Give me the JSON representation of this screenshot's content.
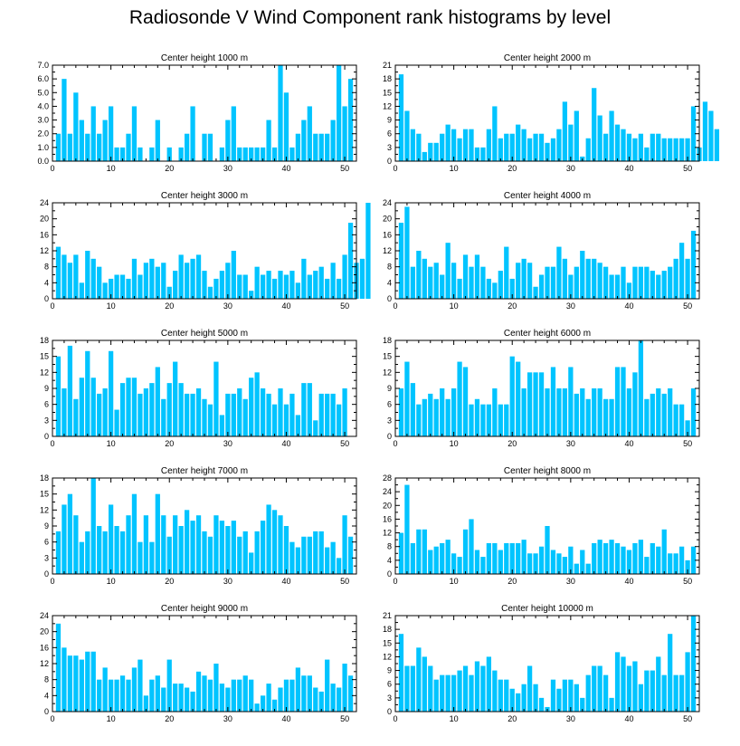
{
  "title": "Radiosonde V Wind Component rank histograms by level",
  "bar_color": "#00c4ff",
  "chart_data": [
    {
      "type": "bar",
      "title": "Center height 1000 m",
      "xlim": [
        0,
        52
      ],
      "ylim": [
        0,
        7
      ],
      "yticks": [
        "0.0",
        "1.0",
        "2.0",
        "3.0",
        "4.0",
        "5.0",
        "6.0",
        "7.0"
      ],
      "ytick_values": [
        0,
        1,
        2,
        3,
        4,
        5,
        6,
        7
      ],
      "xticks": [
        0,
        10,
        20,
        30,
        40,
        50
      ],
      "values": [
        2,
        6,
        2,
        5,
        3,
        2,
        4,
        2,
        3,
        4,
        1,
        1,
        2,
        4,
        1,
        0,
        1,
        3,
        0,
        1,
        0,
        1,
        2,
        4,
        0,
        2,
        2,
        0,
        1,
        3,
        4,
        1,
        1,
        1,
        1,
        1,
        3,
        1,
        7,
        5,
        1,
        2,
        3,
        4,
        2,
        2,
        2,
        3,
        7,
        4,
        6
      ]
    },
    {
      "type": "bar",
      "title": "Center height 2000 m",
      "xlim": [
        0,
        52
      ],
      "ylim": [
        0,
        21
      ],
      "yticks": [
        "0",
        "3",
        "6",
        "9",
        "12",
        "15",
        "18",
        "21"
      ],
      "ytick_values": [
        0,
        3,
        6,
        9,
        12,
        15,
        18,
        21
      ],
      "xticks": [
        0,
        10,
        20,
        30,
        40,
        50
      ],
      "values": [
        19,
        11,
        7,
        6,
        2,
        4,
        4,
        6,
        8,
        7,
        5,
        7,
        7,
        3,
        3,
        7,
        12,
        5,
        6,
        6,
        8,
        7,
        5,
        6,
        6,
        4,
        5,
        7,
        13,
        8,
        11,
        1,
        5,
        16,
        10,
        6,
        11,
        8,
        7,
        6,
        5,
        6,
        3,
        6,
        6,
        5,
        5,
        5,
        5,
        5,
        12,
        3,
        13,
        11,
        7
      ]
    },
    {
      "type": "bar",
      "title": "Center height 3000 m",
      "xlim": [
        0,
        52
      ],
      "ylim": [
        0,
        24
      ],
      "yticks": [
        "0",
        "4",
        "8",
        "12",
        "16",
        "20",
        "24"
      ],
      "ytick_values": [
        0,
        4,
        8,
        12,
        16,
        20,
        24
      ],
      "xticks": [
        0,
        10,
        20,
        30,
        40,
        50
      ],
      "values": [
        13,
        11,
        9,
        11,
        4,
        12,
        10,
        8,
        4,
        5,
        6,
        6,
        5,
        10,
        6,
        9,
        10,
        8,
        9,
        3,
        7,
        11,
        9,
        10,
        11,
        7,
        3,
        5,
        7,
        9,
        12,
        6,
        6,
        2,
        8,
        6,
        7,
        5,
        7,
        6,
        7,
        4,
        10,
        6,
        7,
        8,
        5,
        9,
        5,
        11,
        19,
        9,
        10,
        24
      ]
    },
    {
      "type": "bar",
      "title": "Center height 4000 m",
      "xlim": [
        0,
        52
      ],
      "ylim": [
        0,
        24
      ],
      "yticks": [
        "0",
        "4",
        "8",
        "12",
        "16",
        "20",
        "24"
      ],
      "ytick_values": [
        0,
        4,
        8,
        12,
        16,
        20,
        24
      ],
      "xticks": [
        0,
        10,
        20,
        30,
        40,
        50
      ],
      "values": [
        19,
        23,
        8,
        12,
        10,
        8,
        9,
        6,
        14,
        9,
        5,
        11,
        8,
        11,
        8,
        5,
        4,
        7,
        13,
        5,
        9,
        10,
        9,
        3,
        6,
        8,
        8,
        13,
        10,
        6,
        8,
        12,
        10,
        10,
        9,
        8,
        6,
        6,
        8,
        4,
        8,
        8,
        8,
        7,
        6,
        7,
        8,
        10,
        14,
        10,
        17
      ]
    },
    {
      "type": "bar",
      "title": "Center height 5000 m",
      "xlim": [
        0,
        52
      ],
      "ylim": [
        0,
        18
      ],
      "yticks": [
        "0",
        "3",
        "6",
        "9",
        "12",
        "15",
        "18"
      ],
      "ytick_values": [
        0,
        3,
        6,
        9,
        12,
        15,
        18
      ],
      "xticks": [
        0,
        10,
        20,
        30,
        40,
        50
      ],
      "values": [
        15,
        9,
        17,
        7,
        11,
        16,
        11,
        8,
        9,
        16,
        5,
        10,
        11,
        11,
        8,
        9,
        10,
        13,
        7,
        10,
        14,
        10,
        8,
        8,
        9,
        7,
        6,
        14,
        4,
        8,
        8,
        9,
        7,
        11,
        12,
        9,
        8,
        6,
        9,
        6,
        8,
        4,
        10,
        10,
        3,
        8,
        8,
        8,
        6,
        9
      ]
    },
    {
      "type": "bar",
      "title": "Center height 6000 m",
      "xlim": [
        0,
        52
      ],
      "ylim": [
        0,
        18
      ],
      "yticks": [
        "0",
        "3",
        "6",
        "9",
        "12",
        "15",
        "18"
      ],
      "ytick_values": [
        0,
        3,
        6,
        9,
        12,
        15,
        18
      ],
      "xticks": [
        0,
        10,
        20,
        30,
        40,
        50
      ],
      "values": [
        9,
        14,
        10,
        6,
        7,
        8,
        7,
        9,
        7,
        9,
        14,
        13,
        6,
        7,
        6,
        6,
        9,
        6,
        6,
        15,
        14,
        9,
        12,
        12,
        12,
        9,
        13,
        9,
        9,
        13,
        8,
        9,
        7,
        9,
        9,
        7,
        7,
        13,
        13,
        9,
        12,
        18,
        7,
        8,
        9,
        8,
        9,
        6,
        6,
        3,
        9
      ]
    },
    {
      "type": "bar",
      "title": "Center height 7000 m",
      "xlim": [
        0,
        52
      ],
      "ylim": [
        0,
        18
      ],
      "yticks": [
        "0",
        "3",
        "6",
        "9",
        "12",
        "15",
        "18"
      ],
      "ytick_values": [
        0,
        3,
        6,
        9,
        12,
        15,
        18
      ],
      "xticks": [
        0,
        10,
        20,
        30,
        40,
        50
      ],
      "values": [
        8,
        13,
        15,
        11,
        6,
        8,
        18,
        9,
        8,
        13,
        9,
        8,
        11,
        15,
        6,
        11,
        6,
        15,
        11,
        7,
        11,
        9,
        12,
        10,
        11,
        8,
        7,
        11,
        10,
        9,
        10,
        7,
        8,
        4,
        8,
        10,
        13,
        12,
        11,
        9,
        6,
        5,
        7,
        7,
        8,
        8,
        5,
        6,
        3,
        11,
        7
      ]
    },
    {
      "type": "bar",
      "title": "Center height 8000 m",
      "xlim": [
        0,
        52
      ],
      "ylim": [
        0,
        28
      ],
      "yticks": [
        "0",
        "4",
        "8",
        "12",
        "16",
        "20",
        "24",
        "28"
      ],
      "ytick_values": [
        0,
        4,
        8,
        12,
        16,
        20,
        24,
        28
      ],
      "xticks": [
        0,
        10,
        20,
        30,
        40,
        50
      ],
      "values": [
        12,
        26,
        9,
        13,
        13,
        7,
        8,
        9,
        10,
        6,
        5,
        13,
        16,
        7,
        5,
        9,
        9,
        7,
        9,
        9,
        9,
        10,
        6,
        6,
        8,
        14,
        7,
        6,
        5,
        8,
        3,
        7,
        3,
        9,
        10,
        9,
        10,
        9,
        8,
        7,
        9,
        10,
        5,
        9,
        8,
        13,
        6,
        6,
        8,
        4,
        8
      ]
    },
    {
      "type": "bar",
      "title": "Center height 9000 m",
      "xlim": [
        0,
        52
      ],
      "ylim": [
        0,
        24
      ],
      "yticks": [
        "0",
        "4",
        "8",
        "12",
        "16",
        "20",
        "24"
      ],
      "ytick_values": [
        0,
        4,
        8,
        12,
        16,
        20,
        24
      ],
      "xticks": [
        0,
        10,
        20,
        30,
        40,
        50
      ],
      "values": [
        22,
        16,
        14,
        14,
        13,
        15,
        15,
        8,
        11,
        8,
        8,
        9,
        8,
        11,
        13,
        4,
        8,
        9,
        6,
        13,
        7,
        7,
        6,
        5,
        10,
        9,
        8,
        12,
        7,
        6,
        8,
        8,
        9,
        8,
        2,
        4,
        7,
        3,
        6,
        8,
        8,
        11,
        9,
        9,
        6,
        5,
        13,
        7,
        6,
        12,
        9
      ]
    },
    {
      "type": "bar",
      "title": "Center height 10000 m",
      "xlim": [
        0,
        52
      ],
      "ylim": [
        0,
        21
      ],
      "yticks": [
        "0",
        "3",
        "6",
        "9",
        "12",
        "15",
        "18",
        "21"
      ],
      "ytick_values": [
        0,
        3,
        6,
        9,
        12,
        15,
        18,
        21
      ],
      "xticks": [
        0,
        10,
        20,
        30,
        40,
        50
      ],
      "values": [
        17,
        10,
        10,
        14,
        12,
        10,
        7,
        8,
        8,
        8,
        9,
        10,
        8,
        11,
        10,
        12,
        9,
        7,
        7,
        5,
        4,
        6,
        10,
        6,
        3,
        1,
        7,
        5,
        7,
        7,
        6,
        3,
        8,
        10,
        10,
        8,
        3,
        13,
        12,
        10,
        11,
        6,
        9,
        9,
        12,
        8,
        17,
        8,
        8,
        13,
        21
      ]
    }
  ]
}
